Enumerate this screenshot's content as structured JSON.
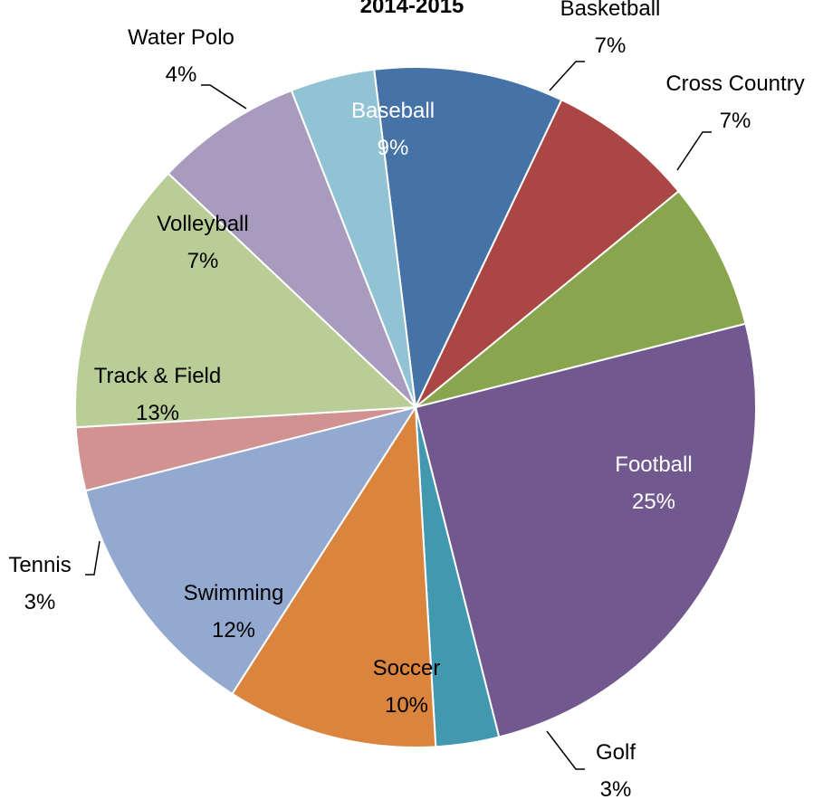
{
  "chart_data": {
    "type": "pie",
    "title": "2014-2015",
    "slices": [
      {
        "label": "Baseball",
        "value": 9,
        "percent_text": "9%",
        "color": "#4572A7",
        "label_color": "#ffffff",
        "leader": false
      },
      {
        "label": "Basketball",
        "value": 7,
        "percent_text": "7%",
        "color": "#AA4643",
        "label_color": "#000000",
        "leader": true
      },
      {
        "label": "Cross Country",
        "value": 7,
        "percent_text": "7%",
        "color": "#89A54E",
        "label_color": "#000000",
        "leader": true
      },
      {
        "label": "Football",
        "value": 25,
        "percent_text": "25%",
        "color": "#71588F",
        "label_color": "#ffffff",
        "leader": false
      },
      {
        "label": "Golf",
        "value": 3,
        "percent_text": "3%",
        "color": "#4198AF",
        "label_color": "#000000",
        "leader": true
      },
      {
        "label": "Soccer",
        "value": 10,
        "percent_text": "10%",
        "color": "#DB843D",
        "label_color": "#000000",
        "leader": false
      },
      {
        "label": "Swimming",
        "value": 12,
        "percent_text": "12%",
        "color": "#93A9CF",
        "label_color": "#000000",
        "leader": false
      },
      {
        "label": "Tennis",
        "value": 3,
        "percent_text": "3%",
        "color": "#D19392",
        "label_color": "#000000",
        "leader": true
      },
      {
        "label": "Track & Field",
        "value": 13,
        "percent_text": "13%",
        "color": "#B9CD96",
        "label_color": "#000000",
        "leader": false
      },
      {
        "label": "Volleyball",
        "value": 7,
        "percent_text": "7%",
        "color": "#A99BBD",
        "label_color": "#000000",
        "leader": false
      },
      {
        "label": "Water Polo",
        "value": 4,
        "percent_text": "4%",
        "color": "#92C3D4",
        "label_color": "#000000",
        "leader": true
      }
    ]
  }
}
